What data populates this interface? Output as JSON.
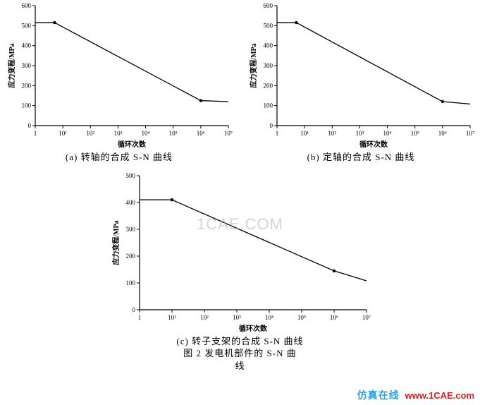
{
  "chart_a": {
    "type": "line",
    "xlabel": "循环次数",
    "ylabel": "应力变程/MPa",
    "xticks": [
      "1",
      "10¹",
      "10²",
      "10³",
      "10⁴",
      "10⁵",
      "10⁶",
      "10⁷"
    ],
    "yticks": [
      0,
      100,
      200,
      300,
      400,
      500,
      600
    ],
    "ylim": [
      0,
      600
    ],
    "line_color": "#000000",
    "background_color": "#ffffff",
    "points_xi": [
      0,
      0.7,
      6.0,
      7.0
    ],
    "points_y": [
      515,
      515,
      125,
      120
    ],
    "markers_xi": [
      0.7,
      6.0
    ],
    "markers_y": [
      515,
      125
    ],
    "caption": "(a)  转轴的合成   S-N 曲线"
  },
  "chart_b": {
    "type": "line",
    "xlabel": "循环次数",
    "ylabel": "应力变程/MPa",
    "xticks": [
      "1",
      "10¹",
      "10²",
      "10³",
      "10⁴",
      "10⁵",
      "10⁶",
      "10⁷"
    ],
    "yticks": [
      0,
      100,
      200,
      300,
      400,
      500,
      600
    ],
    "ylim": [
      0,
      600
    ],
    "line_color": "#000000",
    "background_color": "#ffffff",
    "points_xi": [
      0,
      0.7,
      6.0,
      7.0
    ],
    "points_y": [
      515,
      515,
      120,
      108
    ],
    "markers_xi": [
      0.7,
      6.0
    ],
    "markers_y": [
      515,
      120
    ],
    "caption": "(b)  定轴的合成   S-N 曲线"
  },
  "chart_c": {
    "type": "line",
    "xlabel": "循环次数",
    "ylabel": "应力变程/MPa",
    "xticks": [
      "1",
      "10¹",
      "10²",
      "10³",
      "10⁴",
      "10⁵",
      "10⁶",
      "10⁷"
    ],
    "yticks": [
      0,
      100,
      200,
      300,
      400,
      500
    ],
    "ylim": [
      0,
      500
    ],
    "line_color": "#000000",
    "background_color": "#ffffff",
    "points_xi": [
      0,
      1.0,
      6.0,
      7.0
    ],
    "points_y": [
      410,
      410,
      145,
      108
    ],
    "markers_xi": [
      1.0,
      6.0
    ],
    "markers_y": [
      410,
      145
    ],
    "caption": "(c)  转子支架的合成   S-N 曲线"
  },
  "figure_caption_line1": "图  2 发电机部件的  S-N 曲",
  "figure_caption_line2": "线",
  "footer_brand": "仿真在线",
  "footer_url": "www.1CAE.com",
  "watermark": "1CAE.COM",
  "style": {
    "axis_color": "#000000",
    "tick_font_size": 9,
    "label_font_size": 10,
    "caption_font_size": 13,
    "marker_radius": 2.2
  }
}
